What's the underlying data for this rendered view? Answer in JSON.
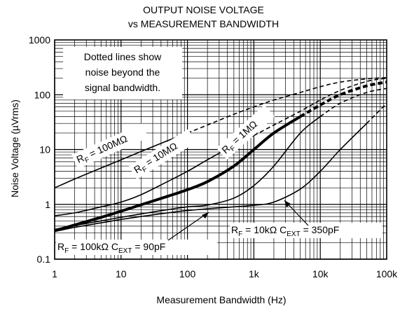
{
  "chart_data": {
    "type": "line",
    "title": "OUTPUT NOISE VOLTAGE",
    "subtitle": "vs MEASUREMENT BANDWIDTH",
    "xlabel": "Measurement Bandwidth (Hz)",
    "ylabel": "Noise Voltage (µVrms)",
    "x_scale": "log",
    "y_scale": "log",
    "xlim": [
      1,
      100000
    ],
    "ylim": [
      0.1,
      1000
    ],
    "x_ticks": [
      "1",
      "10",
      "100",
      "1k",
      "10k",
      "100k"
    ],
    "y_ticks": [
      "0.1",
      "1",
      "10",
      "100",
      "1000"
    ],
    "grid": true,
    "annotation": [
      "Dotted lines show",
      "noise beyond the",
      "signal bandwidth."
    ],
    "series": [
      {
        "label_main": "R",
        "label_sub": "F",
        "label_rest": " = 100MΩ",
        "weight": "thin",
        "x": [
          1,
          2,
          5,
          10,
          20,
          50,
          100
        ],
        "values": [
          2,
          2.9,
          4.6,
          6.5,
          9.2,
          14.5,
          20
        ],
        "dashed_x": [
          100,
          200,
          500,
          1000,
          2000,
          5000,
          10000,
          20000,
          50000,
          100000
        ],
        "dashed_values": [
          20,
          28,
          44,
          60,
          80,
          110,
          140,
          170,
          195,
          205
        ]
      },
      {
        "label_main": "R",
        "label_sub": "F",
        "label_rest": " = 10MΩ",
        "weight": "thin",
        "x": [
          1,
          2,
          5,
          10,
          20,
          50,
          100,
          200,
          500,
          1000
        ],
        "values": [
          0.62,
          0.7,
          0.9,
          1.1,
          1.5,
          2.6,
          4,
          6.5,
          12,
          18
        ],
        "dashed_x": [
          1000,
          2000,
          5000,
          10000,
          20000,
          50000,
          100000
        ],
        "dashed_values": [
          18,
          28,
          50,
          80,
          120,
          175,
          200
        ]
      },
      {
        "label_main": "R",
        "label_sub": "F",
        "label_rest": " = 1MΩ",
        "weight": "thick",
        "x": [
          1,
          2,
          5,
          10,
          20,
          50,
          100,
          200,
          500,
          1000,
          2000,
          5000
        ],
        "values": [
          0.33,
          0.42,
          0.58,
          0.75,
          0.98,
          1.4,
          1.85,
          2.6,
          5,
          10,
          20,
          40
        ],
        "dashed_x": [
          5000,
          10000,
          20000,
          50000,
          100000
        ],
        "dashed_values": [
          40,
          65,
          100,
          145,
          170
        ]
      },
      {
        "label_main": "R",
        "label_sub": "F",
        "label_rest": " = 100kΩ C",
        "label_sub2": "EXT",
        "label_rest2": " = 90pF",
        "weight": "thin",
        "x": [
          1,
          2,
          5,
          10,
          20,
          50,
          100,
          200,
          500,
          1000,
          2000,
          5000,
          10000
        ],
        "values": [
          0.35,
          0.41,
          0.5,
          0.58,
          0.67,
          0.8,
          0.9,
          0.97,
          1.3,
          2.2,
          5,
          20,
          40
        ],
        "dashed_x": [
          10000,
          20000,
          50000,
          100000
        ],
        "dashed_values": [
          40,
          70,
          110,
          130
        ]
      },
      {
        "label_main": "R",
        "label_sub": "F",
        "label_rest": " = 10kΩ C",
        "label_sub2": "EXT",
        "label_rest2": " = 350pF",
        "weight": "thin",
        "x": [
          1,
          2,
          5,
          10,
          20,
          50,
          100,
          200,
          500,
          1000,
          2000,
          5000,
          10000,
          20000,
          50000
        ],
        "values": [
          0.32,
          0.38,
          0.46,
          0.53,
          0.6,
          0.7,
          0.77,
          0.83,
          0.9,
          0.96,
          1.1,
          1.9,
          4,
          10,
          30
        ],
        "dashed_x": [
          50000,
          100000
        ],
        "dashed_values": [
          30,
          70
        ]
      }
    ]
  }
}
